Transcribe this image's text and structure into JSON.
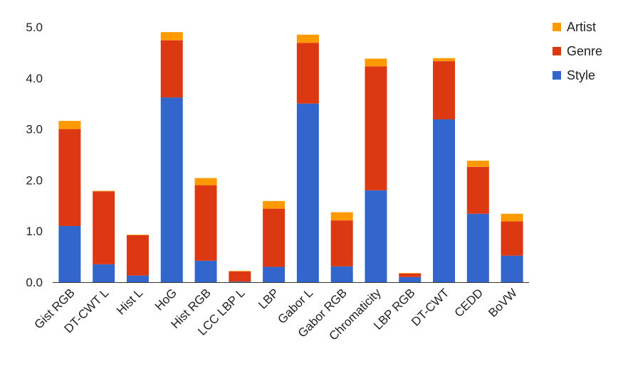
{
  "chart_data": {
    "type": "bar",
    "stacked": true,
    "categories": [
      "Gist RGB",
      "DT-CWT L",
      "Hist L",
      "HoG",
      "Hist RGB",
      "LCC LBP L",
      "LBP",
      "Gabor L",
      "Gabor RGB",
      "Chromaticity",
      "LBP RGB",
      "DT-CWT",
      "CEDD",
      "BoVW"
    ],
    "series": [
      {
        "name": "Style",
        "color": "#3366cc",
        "values": [
          1.1,
          0.35,
          0.13,
          3.62,
          0.42,
          0.01,
          0.3,
          3.5,
          0.31,
          1.8,
          0.1,
          3.19,
          1.34,
          0.52
        ]
      },
      {
        "name": "Genre",
        "color": "#dc3912",
        "values": [
          1.9,
          1.43,
          0.79,
          1.12,
          1.48,
          0.2,
          1.14,
          1.19,
          0.9,
          2.43,
          0.07,
          1.14,
          0.92,
          0.67
        ]
      },
      {
        "name": "Artist",
        "color": "#ff9900",
        "values": [
          0.16,
          0.01,
          0.01,
          0.16,
          0.14,
          0.01,
          0.15,
          0.16,
          0.16,
          0.15,
          0.01,
          0.06,
          0.12,
          0.15
        ]
      }
    ],
    "y_ticks": [
      "0.0",
      "1.0",
      "2.0",
      "3.0",
      "4.0",
      "5.0"
    ],
    "ylim": [
      0,
      5
    ],
    "title": "",
    "xlabel": "",
    "ylabel": "",
    "grid": false,
    "legend_position": "right",
    "legend_order": [
      "Artist",
      "Genre",
      "Style"
    ]
  }
}
